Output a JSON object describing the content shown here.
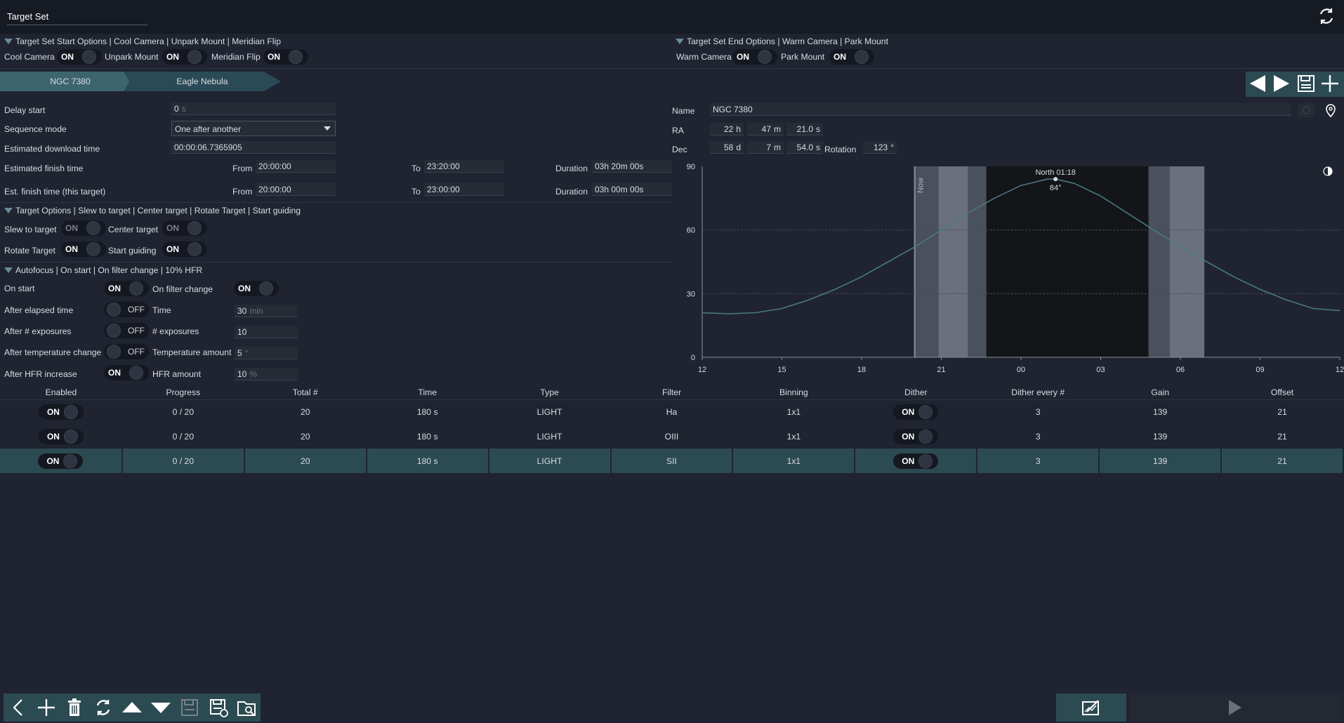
{
  "header": {
    "title": "Target Set"
  },
  "start_options": {
    "heading": "Target Set Start Options  | Cool Camera | Unpark Mount | Meridian Flip",
    "cool_camera": "Cool Camera",
    "unpark_mount": "Unpark Mount",
    "meridian_flip": "Meridian Flip"
  },
  "end_options": {
    "heading": "Target Set End Options | Warm Camera | Park Mount",
    "warm_camera": "Warm Camera",
    "park_mount": "Park Mount"
  },
  "toggle": {
    "on": "ON",
    "off": "OFF"
  },
  "tabs": [
    "NGC 7380",
    "Eagle Nebula"
  ],
  "left": {
    "delay_start": "Delay start",
    "delay_value": "0",
    "delay_unit": "s",
    "sequence_mode": "Sequence mode",
    "sequence_value": "One after another",
    "est_download": "Estimated download time",
    "est_download_value": "00:00:06.7365905",
    "est_finish": "Estimated finish time",
    "est_finish_this": "Est. finish time (this target)",
    "from": "From",
    "to": "To",
    "duration": "Duration",
    "f1_from": "20:00:00",
    "f1_to": "23:20:00",
    "f1_dur": "03h 20m 00s",
    "f2_from": "20:00:00",
    "f2_to": "23:00:00",
    "f2_dur": "03h 00m 00s"
  },
  "target_options": {
    "heading": "Target Options | Slew to target | Center target | Rotate Target | Start guiding",
    "slew": "Slew to target",
    "center": "Center target",
    "rotate": "Rotate Target",
    "guide": "Start guiding"
  },
  "autofocus": {
    "heading": "Autofocus | On start | On filter change | 10% HFR",
    "on_start": "On start",
    "on_filter": "On filter change",
    "after_elapsed": "After elapsed time",
    "time": "Time",
    "time_val": "30",
    "time_unit": "min",
    "after_exp": "After # exposures",
    "exp": "# exposures",
    "exp_val": "10",
    "after_temp": "After temperature change",
    "temp": "Temperature amount",
    "temp_val": "5",
    "temp_unit": "°",
    "after_hfr": "After HFR increase",
    "hfr": "HFR amount",
    "hfr_val": "10",
    "hfr_unit": "%"
  },
  "target": {
    "name_label": "Name",
    "name": "NGC 7380",
    "ra_label": "RA",
    "ra_h": "22",
    "ra_m": "47",
    "ra_s": "21.0",
    "dec_label": "Dec",
    "dec_d": "58",
    "dec_m": "7",
    "dec_s": "54.0",
    "rotation_label": "Rotation",
    "rotation": "123",
    "u_h": "h",
    "u_m": "m",
    "u_s": "s",
    "u_d": "d",
    "u_deg": "°"
  },
  "chart_data": {
    "type": "line",
    "y_ticks": [
      "0",
      "30",
      "60",
      "90"
    ],
    "x_ticks": [
      "12",
      "15",
      "18",
      "21",
      "00",
      "03",
      "06",
      "09",
      "12"
    ],
    "ylim": [
      0,
      90
    ],
    "now_label": "Now",
    "peak_label": "North 01:18",
    "peak_alt": "84°",
    "x_hours": [
      12,
      13,
      14,
      15,
      16,
      17,
      18,
      19,
      20,
      21,
      22,
      23,
      24,
      25,
      25.3,
      26,
      27,
      28,
      29,
      30,
      31,
      32,
      33,
      34,
      35,
      36
    ],
    "altitude": [
      21,
      20.5,
      21,
      23,
      27,
      32,
      38,
      45,
      52,
      60,
      68,
      75,
      81,
      84,
      84,
      82,
      76,
      68,
      60,
      52,
      45,
      38,
      32,
      27,
      23,
      22
    ]
  },
  "sequence_table": {
    "columns": [
      "Enabled",
      "Progress",
      "Total #",
      "Time",
      "Type",
      "Filter",
      "Binning",
      "Dither",
      "Dither every #",
      "Gain",
      "Offset"
    ],
    "rows": [
      {
        "progress": "0 / 20",
        "total": "20",
        "time": "180 s",
        "type": "LIGHT",
        "filter": "Ha",
        "binning": "1x1",
        "every": "3",
        "gain": "139",
        "offset": "21"
      },
      {
        "progress": "0 / 20",
        "total": "20",
        "time": "180 s",
        "type": "LIGHT",
        "filter": "OIII",
        "binning": "1x1",
        "every": "3",
        "gain": "139",
        "offset": "21"
      },
      {
        "progress": "0 / 20",
        "total": "20",
        "time": "180 s",
        "type": "LIGHT",
        "filter": "SII",
        "binning": "1x1",
        "every": "3",
        "gain": "139",
        "offset": "21"
      }
    ]
  },
  "colors": {
    "accent": "#2c4a52",
    "curve": "#4a7a80"
  }
}
